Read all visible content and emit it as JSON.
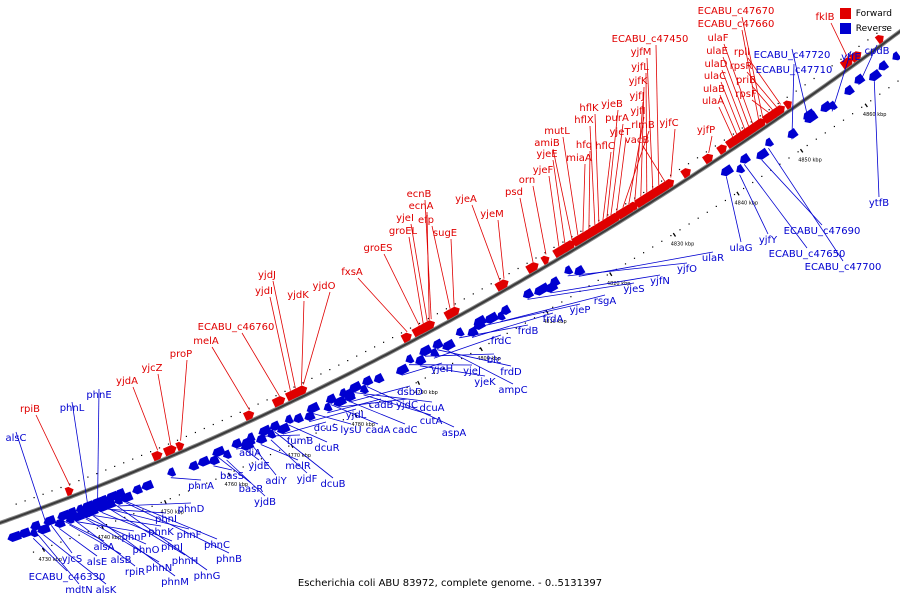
{
  "caption": "Escherichia coli ABU 83972, complete genome. - 0..5131397",
  "legend": [
    {
      "label": "Forward",
      "color": "#e00000"
    },
    {
      "label": "Reverse",
      "color": "#0000d0"
    }
  ],
  "kbp_ticks": [
    "4730 kbp",
    "4740 kbp",
    "4750 kbp",
    "4760 kbp",
    "4770 kbp",
    "4780 kbp",
    "4790 kbp",
    "4800 kbp",
    "4810 kbp",
    "4820 kbp",
    "4830 kbp",
    "4840 kbp",
    "4850 kbp",
    "4860 kbp"
  ],
  "forward_genes": [
    "rpiB",
    "yjdA",
    "yjcZ",
    "proP",
    "melA",
    "ECABU_c46760",
    "yjdI",
    "yjdJ",
    "yjdK",
    "yjdO",
    "fxsA",
    "groES",
    "groEL",
    "yjeI",
    "ecnA",
    "ecnB",
    "efp",
    "sugE",
    "yjeA",
    "yjeM",
    "psd",
    "orn",
    "yjeF",
    "yjeE",
    "amiB",
    "mutL",
    "miaA",
    "hfq",
    "hflX",
    "hflK",
    "hflC",
    "yjeB",
    "purA",
    "yjeT",
    "rlmB",
    "yjfI",
    "yjfJ",
    "yjfK",
    "yjfL",
    "yjfM",
    "ECABU_c47450",
    "vacB",
    "yjfC",
    "yjfP",
    "ulaA",
    "ulaB",
    "ulaC",
    "ulaD",
    "ulaE",
    "ulaF",
    "ECABU_c47660",
    "ECABU_c47670",
    "rpsF",
    "priB",
    "rpsR",
    "rplI",
    "fklB"
  ],
  "reverse_genes": [
    "alsC",
    "phnL",
    "phnE",
    "ECABU_c46330",
    "mdtN",
    "alsK",
    "yjcS",
    "alsE",
    "alsA",
    "alsB",
    "rpiR",
    "phnP",
    "phnO",
    "phnN",
    "phnM",
    "phnK",
    "phnI",
    "phnJ",
    "phnH",
    "phnF",
    "phnG",
    "phnD",
    "phnC",
    "phnB",
    "phnA",
    "basS",
    "basR",
    "yjdB",
    "adiA",
    "yjdE",
    "adiY",
    "melR",
    "fumB",
    "yjdF",
    "dcuB",
    "dcuS",
    "dcuR",
    "yjdL",
    "lysU",
    "cadB",
    "cadA",
    "yjdC",
    "cadC",
    "dsbD",
    "dcuA",
    "cutA",
    "aspA",
    "yjeH",
    "yjeJ",
    "yjeK",
    "blc",
    "frdC",
    "frdD",
    "ampC",
    "frdB",
    "frdA",
    "yjeP",
    "rsgA",
    "yjeS",
    "yjfN",
    "yjfO",
    "ulaR",
    "ulaG",
    "yjfY",
    "ECABU_c47650",
    "ECABU_c47690",
    "ECABU_c47700",
    "ECABU_c47710",
    "ECABU_c47720",
    "ytfE",
    "cpdB",
    "ytfB"
  ]
}
